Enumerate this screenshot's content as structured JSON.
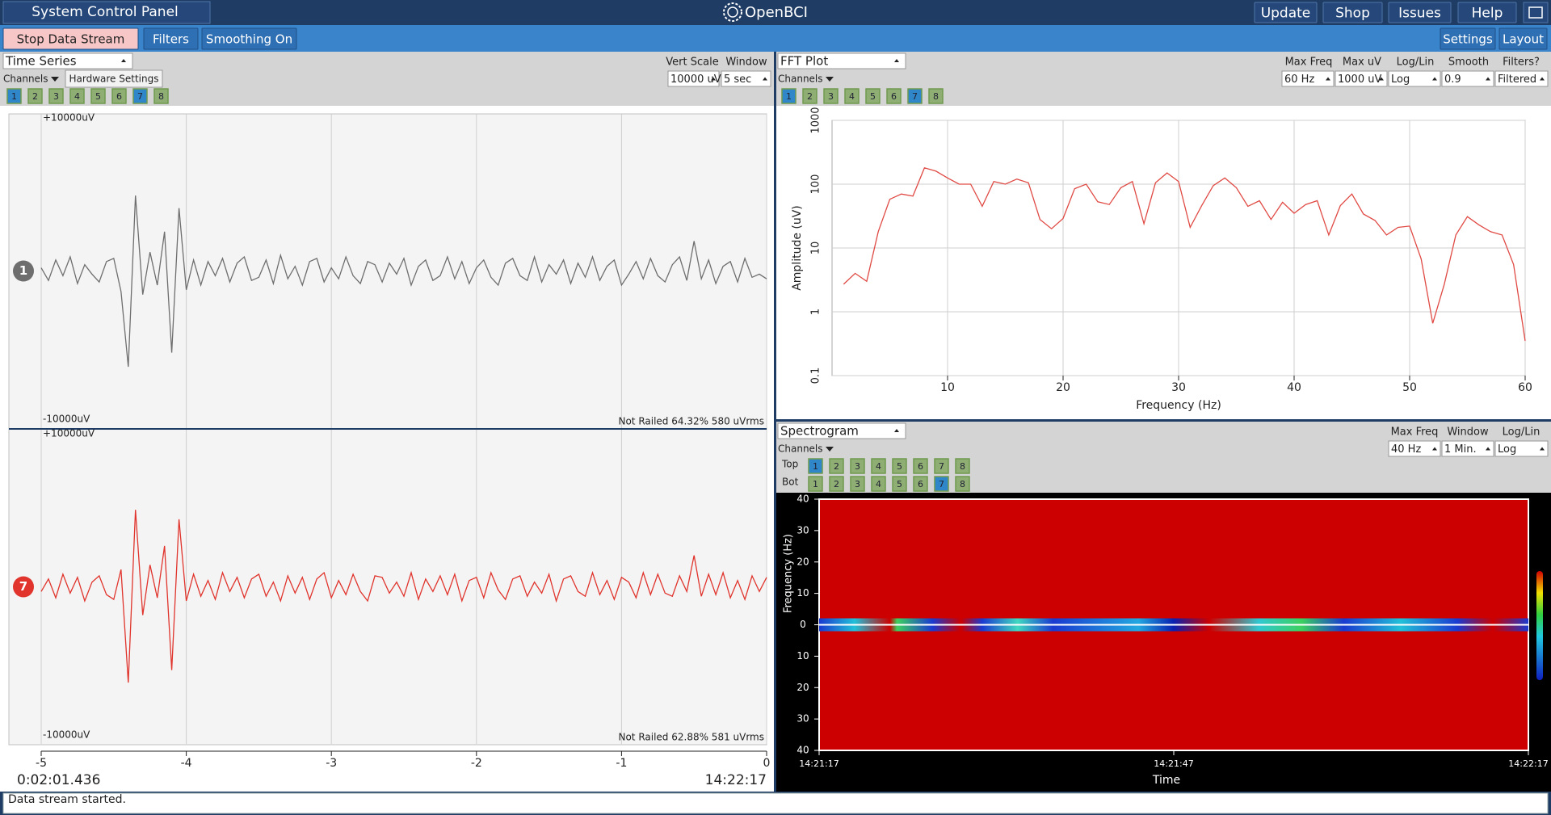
{
  "header": {
    "title": "System Control Panel",
    "logo": "OpenBCI",
    "buttons": [
      "Update",
      "Shop",
      "Issues",
      "Help"
    ]
  },
  "toolbar": {
    "left": [
      "Stop Data Stream",
      "Filters",
      "Smoothing On"
    ],
    "right": [
      "Settings",
      "Layout"
    ]
  },
  "widgets": [
    {
      "title": "Time Series",
      "channels_label": "Channels",
      "hardware_settings": "Hardware Settings",
      "controls": [
        {
          "label": "Vert Scale",
          "value": "10000 uV"
        },
        {
          "label": "Window",
          "value": "5 sec"
        }
      ],
      "channel_buttons": [
        {
          "label": "1",
          "active": true
        },
        {
          "label": "2",
          "active": false
        },
        {
          "label": "3",
          "active": false
        },
        {
          "label": "4",
          "active": false
        },
        {
          "label": "5",
          "active": false
        },
        {
          "label": "6",
          "active": false
        },
        {
          "label": "7",
          "active": true
        },
        {
          "label": "8",
          "active": false
        }
      ],
      "elapsed": "0:02:01.436",
      "clock": "14:22:17"
    },
    {
      "title": "FFT Plot",
      "channels_label": "Channels",
      "controls": [
        {
          "label": "Max Freq",
          "value": "60 Hz"
        },
        {
          "label": "Max uV",
          "value": "1000 uV"
        },
        {
          "label": "Log/Lin",
          "value": "Log"
        },
        {
          "label": "Smooth",
          "value": "0.9"
        },
        {
          "label": "Filters?",
          "value": "Filtered"
        }
      ],
      "channel_buttons": [
        {
          "label": "1",
          "active": true
        },
        {
          "label": "2",
          "active": false
        },
        {
          "label": "3",
          "active": false
        },
        {
          "label": "4",
          "active": false
        },
        {
          "label": "5",
          "active": false
        },
        {
          "label": "6",
          "active": false
        },
        {
          "label": "7",
          "active": true
        },
        {
          "label": "8",
          "active": false
        }
      ]
    },
    {
      "title": "Spectrogram",
      "channels_label": "Channels",
      "controls": [
        {
          "label": "Max Freq",
          "value": "40 Hz"
        },
        {
          "label": "Window",
          "value": "1 Min."
        },
        {
          "label": "Log/Lin",
          "value": "Log"
        }
      ],
      "rows": [
        {
          "label": "Top",
          "channel_buttons": [
            {
              "label": "1",
              "active": true
            },
            {
              "label": "2",
              "active": false
            },
            {
              "label": "3",
              "active": false
            },
            {
              "label": "4",
              "active": false
            },
            {
              "label": "5",
              "active": false
            },
            {
              "label": "6",
              "active": false
            },
            {
              "label": "7",
              "active": false
            },
            {
              "label": "8",
              "active": false
            }
          ]
        },
        {
          "label": "Bot",
          "channel_buttons": [
            {
              "label": "1",
              "active": false
            },
            {
              "label": "2",
              "active": false
            },
            {
              "label": "3",
              "active": false
            },
            {
              "label": "4",
              "active": false
            },
            {
              "label": "5",
              "active": false
            },
            {
              "label": "6",
              "active": false
            },
            {
              "label": "7",
              "active": true
            },
            {
              "label": "8",
              "active": false
            }
          ]
        }
      ]
    }
  ],
  "chart_data": [
    {
      "type": "line",
      "x": [
        -5,
        -4.95,
        -4.9,
        -4.85,
        -4.8,
        -4.75,
        -4.7,
        -4.65,
        -4.6,
        -4.55,
        -4.5,
        -4.45,
        -4.4,
        -4.35,
        -4.3,
        -4.25,
        -4.2,
        -4.15,
        -4.1,
        -4.05,
        -4,
        -3.95,
        -3.9,
        -3.85,
        -3.8,
        -3.75,
        -3.7,
        -3.65,
        -3.6,
        -3.55,
        -3.5,
        -3.45,
        -3.4,
        -3.35,
        -3.3,
        -3.25,
        -3.2,
        -3.15,
        -3.1,
        -3.05,
        -3,
        -2.95,
        -2.9,
        -2.85,
        -2.8,
        -2.75,
        -2.7,
        -2.65,
        -2.6,
        -2.55,
        -2.5,
        -2.45,
        -2.4,
        -2.35,
        -2.3,
        -2.25,
        -2.2,
        -2.15,
        -2.1,
        -2.05,
        -2,
        -1.95,
        -1.9,
        -1.85,
        -1.8,
        -1.75,
        -1.7,
        -1.65,
        -1.6,
        -1.55,
        -1.5,
        -1.45,
        -1.4,
        -1.35,
        -1.3,
        -1.25,
        -1.2,
        -1.15,
        -1.1,
        -1.05,
        -1,
        -0.95,
        -0.9,
        -0.85,
        -0.8,
        -0.75,
        -0.7,
        -0.65,
        -0.6,
        -0.55,
        -0.5,
        -0.45,
        -0.4,
        -0.35,
        -0.3,
        -0.25,
        -0.2,
        -0.15,
        -0.1,
        -0.05,
        0
      ],
      "xlim": [
        -5,
        0
      ],
      "xticks": [
        -5,
        -4,
        -3,
        -2,
        -1,
        0
      ],
      "ylim": [
        -10000,
        10000
      ],
      "grid": true,
      "series": [
        {
          "name": "1",
          "color": "#6e6e6e",
          "top_label": "+10000uV",
          "bottom_label": "-10000uV",
          "status": "Not Railed 64.32% 580 uVrms",
          "values": [
            200,
            -600,
            700,
            -300,
            900,
            -800,
            400,
            -200,
            -700,
            600,
            800,
            -1300,
            -6100,
            4800,
            -1500,
            1200,
            -900,
            2500,
            -5200,
            4000,
            -1200,
            700,
            -900,
            600,
            -300,
            800,
            -700,
            500,
            900,
            -600,
            -400,
            700,
            -800,
            1000,
            -500,
            300,
            -900,
            600,
            800,
            -700,
            200,
            -500,
            900,
            -300,
            -800,
            600,
            400,
            -700,
            500,
            -200,
            800,
            -900,
            300,
            700,
            -600,
            -300,
            900,
            -500,
            600,
            -800,
            200,
            700,
            -400,
            -900,
            500,
            800,
            -300,
            -600,
            900,
            -700,
            400,
            -200,
            700,
            -800,
            500,
            -400,
            900,
            -600,
            300,
            700,
            -900,
            -200,
            600,
            -500,
            800,
            -300,
            -700,
            400,
            900,
            -600,
            1900,
            -500,
            700,
            -800,
            300,
            600,
            -700,
            800,
            -400,
            -200,
            -500
          ]
        },
        {
          "name": "7",
          "color": "#e0342c",
          "top_label": "+10000uV",
          "bottom_label": "-10000uV",
          "status": "Not Railed 62.88% 581 uVrms",
          "values": [
            -300,
            500,
            -700,
            800,
            -400,
            600,
            -900,
            300,
            700,
            -500,
            -800,
            1100,
            -6100,
            4900,
            -1800,
            1400,
            -700,
            2600,
            -5300,
            4300,
            -900,
            800,
            -600,
            400,
            -800,
            900,
            -300,
            600,
            -700,
            500,
            800,
            -600,
            300,
            -900,
            700,
            -400,
            600,
            -800,
            500,
            900,
            -700,
            400,
            -500,
            800,
            -300,
            -900,
            700,
            600,
            -400,
            300,
            -600,
            900,
            -800,
            500,
            -300,
            700,
            -500,
            800,
            -900,
            400,
            600,
            -700,
            900,
            -200,
            -800,
            500,
            700,
            -600,
            300,
            -400,
            800,
            -900,
            500,
            700,
            -300,
            -600,
            900,
            -500,
            400,
            -800,
            600,
            300,
            -700,
            900,
            -500,
            800,
            -400,
            -600,
            700,
            -300,
            2000,
            -600,
            800,
            -500,
            900,
            -700,
            400,
            -800,
            700,
            -300,
            600
          ]
        }
      ]
    },
    {
      "type": "line",
      "log_y": true,
      "grid": true,
      "xlabel": "Frequency (Hz)",
      "ylabel": "Amplitude (uV)",
      "x": [
        1,
        2,
        3,
        4,
        5,
        6,
        7,
        8,
        9,
        10,
        11,
        12,
        13,
        14,
        15,
        16,
        17,
        18,
        19,
        20,
        21,
        22,
        23,
        24,
        25,
        26,
        27,
        28,
        29,
        30,
        31,
        32,
        33,
        34,
        35,
        36,
        37,
        38,
        39,
        40,
        41,
        42,
        43,
        44,
        45,
        46,
        47,
        48,
        49,
        50,
        51,
        52,
        53,
        54,
        55,
        56,
        57,
        58,
        59,
        60
      ],
      "xlim": [
        0,
        60
      ],
      "xticks": [
        10,
        20,
        30,
        40,
        50,
        60
      ],
      "ylim": [
        0.1,
        1000
      ],
      "yticks": [
        0.1,
        1,
        10,
        100,
        1000
      ],
      "series": [
        {
          "color": "#e04a44",
          "values": [
            2.7,
            4,
            3,
            18,
            58,
            70,
            65,
            180,
            160,
            125,
            100,
            100,
            45,
            110,
            100,
            120,
            105,
            28,
            20,
            29,
            85,
            100,
            53,
            48,
            88,
            110,
            24,
            105,
            150,
            110,
            21,
            46,
            95,
            125,
            88,
            45,
            55,
            28,
            52,
            35,
            48,
            55,
            16,
            46,
            70,
            34,
            27,
            16,
            21,
            22,
            6.7,
            0.66,
            2.7,
            16,
            31,
            23,
            18,
            16,
            5.5,
            0.35
          ]
        }
      ]
    },
    {
      "type": "heatmap",
      "xlabel": "Time",
      "ylabel": "Frequency (Hz)",
      "xticks": [
        "14:21:17",
        "14:21:47",
        "14:22:17"
      ],
      "ylim": [
        -40,
        40
      ],
      "yticks": [
        40,
        30,
        20,
        10,
        0,
        {
          "value": -10,
          "label": "10"
        },
        {
          "value": -20,
          "label": "20"
        },
        {
          "value": -30,
          "label": "30"
        },
        {
          "value": -40,
          "label": "40"
        }
      ]
    }
  ],
  "status": "Data stream started."
}
